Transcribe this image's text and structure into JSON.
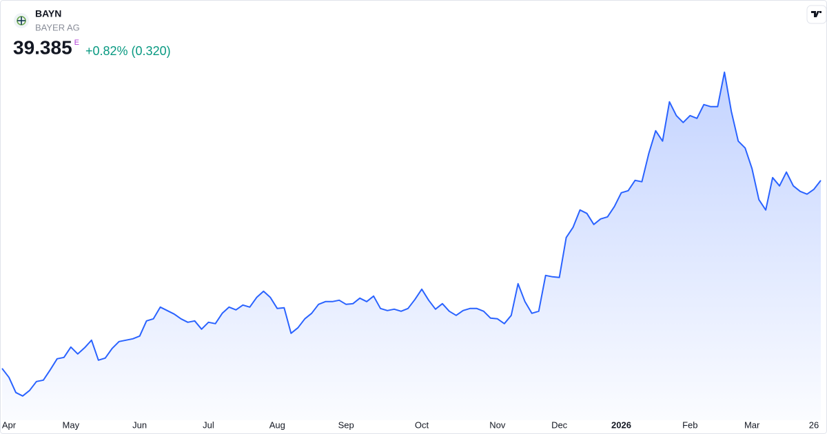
{
  "chart_data": {
    "type": "area",
    "symbol": "BAYN",
    "name": "BAYER AG",
    "price": 39.385,
    "price_flag": "E",
    "change": "+0.82% (0.320)",
    "color": "#2962ff",
    "categories": [
      null,
      "Apr",
      null,
      null,
      null,
      null,
      null,
      null,
      null,
      null,
      "May",
      null,
      null,
      null,
      null,
      null,
      null,
      null,
      null,
      null,
      "Jun",
      null,
      null,
      null,
      null,
      null,
      null,
      null,
      null,
      null,
      "Jul",
      null,
      null,
      null,
      null,
      null,
      null,
      null,
      null,
      null,
      "Aug",
      null,
      null,
      null,
      null,
      null,
      null,
      null,
      null,
      null,
      "Sep",
      null,
      null,
      null,
      null,
      null,
      null,
      null,
      null,
      null,
      null,
      "Oct",
      null,
      null,
      null,
      null,
      null,
      null,
      null,
      null,
      null,
      null,
      "Nov",
      null,
      null,
      null,
      null,
      null,
      null,
      null,
      null,
      "Dec",
      null,
      null,
      null,
      null,
      null,
      null,
      null,
      null,
      "2026",
      null,
      null,
      null,
      null,
      null,
      null,
      null,
      null,
      null,
      "Feb",
      null,
      null,
      null,
      null,
      null,
      null,
      null,
      null,
      "Mar",
      null,
      null,
      null,
      null,
      null,
      null,
      null,
      null,
      "26",
      null
    ],
    "values": [
      23.01,
      22.23,
      20.91,
      20.61,
      21.09,
      21.87,
      21.99,
      22.89,
      23.85,
      23.97,
      24.87,
      24.27,
      24.81,
      25.47,
      23.73,
      23.91,
      24.75,
      25.35,
      25.47,
      25.59,
      25.83,
      27.15,
      27.33,
      28.35,
      28.05,
      27.75,
      27.33,
      27.03,
      27.15,
      26.43,
      27.03,
      26.91,
      27.81,
      28.35,
      28.11,
      28.53,
      28.35,
      29.19,
      29.73,
      29.19,
      28.23,
      28.29,
      26.07,
      26.55,
      27.33,
      27.81,
      28.59,
      28.83,
      28.83,
      28.95,
      28.59,
      28.65,
      29.13,
      28.83,
      29.31,
      28.23,
      28.05,
      28.17,
      27.99,
      28.23,
      29.01,
      29.91,
      28.95,
      28.17,
      28.65,
      27.99,
      27.63,
      28.05,
      28.23,
      28.23,
      27.99,
      27.39,
      27.33,
      26.91,
      27.63,
      30.39,
      28.83,
      27.81,
      27.99,
      31.11,
      30.99,
      30.93,
      34.41,
      35.31,
      36.81,
      36.51,
      35.55,
      36.03,
      36.21,
      37.11,
      38.31,
      38.49,
      39.39,
      39.27,
      41.73,
      43.71,
      42.81,
      46.23,
      45.03,
      44.43,
      45.03,
      44.79,
      45.99,
      45.81,
      45.81,
      48.81,
      45.39,
      42.81,
      42.21,
      40.41,
      37.71,
      36.81,
      39.63,
      38.91,
      40.11,
      38.91,
      38.43,
      38.19,
      38.61,
      39.385
    ],
    "ylim": [
      19.1,
      49.4
    ]
  }
}
